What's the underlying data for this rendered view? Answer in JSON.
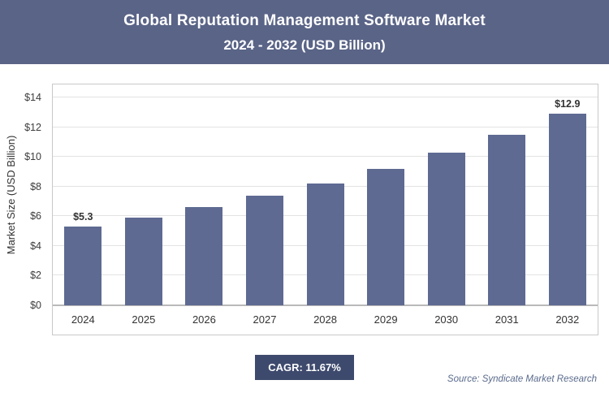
{
  "header": {
    "title_line1": "Global Reputation Management Software Market",
    "title_line2": "2024 - 2032 (USD Billion)"
  },
  "chart_data": {
    "type": "bar",
    "title": "Global Reputation Management Software Market 2024 - 2032 (USD Billion)",
    "categories": [
      "2024",
      "2025",
      "2026",
      "2027",
      "2028",
      "2029",
      "2030",
      "2031",
      "2032"
    ],
    "values": [
      5.3,
      5.9,
      6.6,
      7.4,
      8.2,
      9.2,
      10.3,
      11.5,
      12.9
    ],
    "bar_labels": [
      "$5.3",
      "",
      "",
      "",
      "",
      "",
      "",
      "",
      "$12.9"
    ],
    "xlabel": "",
    "ylabel": "Market Size (USD Billion)",
    "ylim": [
      0,
      14
    ],
    "yticks": [
      {
        "label": "$0",
        "value": 0
      },
      {
        "label": "$2",
        "value": 2
      },
      {
        "label": "$4",
        "value": 4
      },
      {
        "label": "$6",
        "value": 6
      },
      {
        "label": "$8",
        "value": 8
      },
      {
        "label": "$10",
        "value": 10
      },
      {
        "label": "$12",
        "value": 12
      },
      {
        "label": "$14",
        "value": 14
      }
    ],
    "grid": true,
    "legend": "none",
    "bar_color": "#5e6a92",
    "header_color": "#5a6487",
    "badge_color": "#3e4a6d"
  },
  "footer": {
    "cagr_label": "CAGR: 11.67%",
    "source": "Source: Syndicate Market Research"
  }
}
